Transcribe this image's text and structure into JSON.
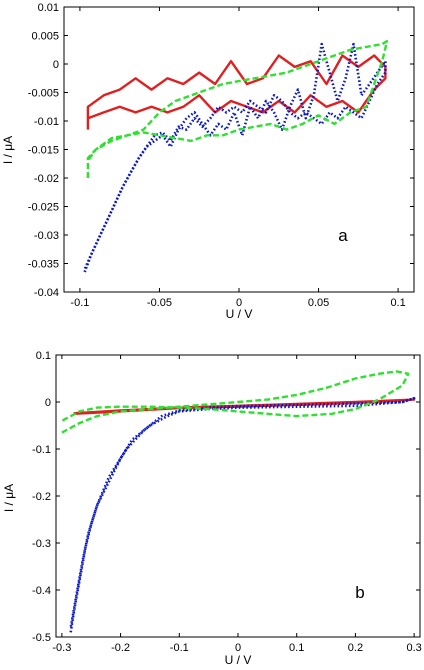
{
  "chart_data": [
    {
      "type": "line",
      "panel_label": "a",
      "xlabel": "U / V",
      "ylabel": "I / μA",
      "xlim": [
        -0.11,
        0.11
      ],
      "ylim": [
        -0.04,
        0.01
      ],
      "xticks": [
        -0.1,
        -0.05,
        0,
        0.05,
        0.1
      ],
      "xtick_labels": [
        "-0.1",
        "-0.05",
        "0",
        "0.05",
        "0.1"
      ],
      "yticks": [
        0.01,
        0.005,
        0,
        -0.005,
        -0.01,
        -0.015,
        -0.02,
        -0.025,
        -0.03,
        -0.035,
        -0.04
      ],
      "ytick_labels": [
        "0.01",
        "0.005",
        "0",
        "-0.005",
        "-0.01",
        "-0.015",
        "-0.02",
        "-0.025",
        "-0.03",
        "-0.035",
        "-0.04"
      ],
      "grid": false,
      "series": [
        {
          "color": "#e02020",
          "style": "solid",
          "x": [
            -0.095,
            -0.095,
            -0.085,
            -0.075,
            -0.065,
            -0.055,
            -0.045,
            -0.035,
            -0.025,
            -0.015,
            -0.005,
            0.005,
            0.015,
            0.025,
            0.035,
            0.045,
            0.055,
            0.065,
            0.075,
            0.085,
            0.092,
            0.092,
            0.085,
            0.075,
            0.065,
            0.055,
            0.045,
            0.035,
            0.025,
            0.015,
            0.005,
            -0.005,
            -0.015,
            -0.025,
            -0.035,
            -0.045,
            -0.055,
            -0.065,
            -0.075,
            -0.085,
            -0.095
          ],
          "y": [
            -0.0115,
            -0.0075,
            -0.0055,
            -0.0045,
            -0.0025,
            -0.0045,
            -0.0025,
            -0.0035,
            -0.0015,
            -0.0035,
            0.0005,
            -0.0035,
            -0.0025,
            0.0015,
            -0.0005,
            0.0005,
            -0.0035,
            0.0015,
            -0.0005,
            0.0015,
            -0.0005,
            -0.0025,
            -0.0045,
            -0.0085,
            -0.0065,
            -0.0075,
            -0.0055,
            -0.0085,
            -0.0065,
            -0.0085,
            -0.0075,
            -0.0065,
            -0.0085,
            -0.0055,
            -0.0075,
            -0.0085,
            -0.0075,
            -0.0085,
            -0.0075,
            -0.0085,
            -0.0095
          ]
        },
        {
          "color": "#0a18c8",
          "style": "dotted",
          "x": [
            -0.097,
            -0.093,
            -0.088,
            -0.083,
            -0.078,
            -0.073,
            -0.068,
            -0.063,
            -0.058,
            -0.053,
            -0.048,
            -0.043,
            -0.038,
            -0.033,
            -0.028,
            -0.023,
            -0.018,
            -0.013,
            -0.008,
            -0.003,
            0.002,
            0.007,
            0.012,
            0.017,
            0.022,
            0.027,
            0.032,
            0.037,
            0.042,
            0.047,
            0.052,
            0.057,
            0.062,
            0.067,
            0.072,
            0.077,
            0.082,
            0.087,
            0.092,
            0.092,
            0.087,
            0.082,
            0.077,
            0.072,
            0.067,
            0.062,
            0.057,
            0.052,
            0.047,
            0.042,
            0.037,
            0.032,
            0.027,
            0.022,
            0.017,
            0.012,
            0.007,
            0.002,
            -0.003,
            -0.008,
            -0.013,
            -0.018,
            -0.023,
            -0.028,
            -0.033,
            -0.038,
            -0.043,
            -0.048,
            -0.053,
            -0.058,
            -0.063,
            -0.068,
            -0.073,
            -0.078,
            -0.083,
            -0.088,
            -0.093,
            -0.097
          ],
          "y": [
            -0.0365,
            -0.0335,
            -0.0305,
            -0.0275,
            -0.0245,
            -0.0215,
            -0.019,
            -0.0165,
            -0.0145,
            -0.0125,
            -0.012,
            -0.0135,
            -0.011,
            -0.0115,
            -0.0095,
            -0.011,
            -0.0095,
            -0.0075,
            -0.0085,
            -0.0075,
            -0.0085,
            -0.0065,
            -0.0075,
            -0.0085,
            -0.0055,
            -0.0065,
            -0.0085,
            -0.0095,
            -0.0085,
            -0.0095,
            -0.0105,
            -0.0085,
            -0.0095,
            -0.0075,
            -0.0085,
            -0.0095,
            -0.0065,
            -0.0035,
            -0.0015,
            0.0005,
            -0.0015,
            -0.0035,
            -0.0055,
            0.0035,
            -0.0025,
            -0.0065,
            -0.0015,
            0.0035,
            -0.0055,
            -0.0095,
            -0.0045,
            -0.0075,
            -0.0115,
            -0.0085,
            -0.0065,
            -0.0095,
            -0.0075,
            -0.0125,
            -0.0085,
            -0.0115,
            -0.0105,
            -0.0125,
            -0.0105,
            -0.0085,
            -0.0095,
            -0.0115,
            -0.0145,
            -0.0125,
            -0.0135,
            -0.0145,
            -0.0165,
            -0.019,
            -0.0215,
            -0.0245,
            -0.0275,
            -0.0305,
            -0.0335,
            -0.036
          ]
        },
        {
          "color": "#30e030",
          "style": "dashed",
          "x": [
            -0.095,
            -0.095,
            -0.09,
            -0.08,
            -0.07,
            -0.06,
            -0.05,
            -0.04,
            -0.03,
            -0.02,
            -0.01,
            0.0,
            0.01,
            0.02,
            0.03,
            0.04,
            0.05,
            0.06,
            0.07,
            0.08,
            0.09,
            0.093,
            0.09,
            0.08,
            0.07,
            0.06,
            0.05,
            0.04,
            0.03,
            0.02,
            0.01,
            0.0,
            -0.01,
            -0.02,
            -0.03,
            -0.04,
            -0.05,
            -0.06,
            -0.07,
            -0.08,
            -0.09,
            -0.095
          ],
          "y": [
            -0.02,
            -0.0165,
            -0.015,
            -0.0135,
            -0.0125,
            -0.0115,
            -0.0085,
            -0.0065,
            -0.0055,
            -0.0045,
            -0.0035,
            -0.003,
            -0.0025,
            -0.002,
            -0.0015,
            -0.0005,
            0.0005,
            0.0015,
            0.0025,
            0.003,
            0.0035,
            0.004,
            0.0005,
            -0.0075,
            -0.0085,
            -0.0105,
            -0.009,
            -0.0105,
            -0.0115,
            -0.0105,
            -0.011,
            -0.0115,
            -0.0125,
            -0.0125,
            -0.0135,
            -0.013,
            -0.0125,
            -0.012,
            -0.0125,
            -0.013,
            -0.015,
            -0.017
          ]
        }
      ]
    },
    {
      "type": "line",
      "panel_label": "b",
      "xlabel": "U / V",
      "ylabel": "I / μA",
      "xlim": [
        -0.31,
        0.31
      ],
      "ylim": [
        -0.5,
        0.1
      ],
      "xticks": [
        -0.3,
        -0.2,
        -0.1,
        0,
        0.1,
        0.2,
        0.3
      ],
      "xtick_labels": [
        "-0.3",
        "-0.2",
        "-0.1",
        "0",
        "0.1",
        "0.2",
        "0.3"
      ],
      "yticks": [
        0.1,
        0,
        -0.1,
        -0.2,
        -0.3,
        -0.4,
        -0.5
      ],
      "ytick_labels": [
        "0.1",
        "0",
        "-0.1",
        "-0.2",
        "-0.3",
        "-0.4",
        "-0.5"
      ],
      "grid": false,
      "series": [
        {
          "color": "#e02020",
          "style": "solid",
          "x": [
            -0.28,
            -0.2,
            -0.1,
            0.0,
            0.1,
            0.2,
            0.3,
            0.2,
            0.1,
            0.0,
            -0.1,
            -0.2,
            -0.28
          ],
          "y": [
            -0.025,
            -0.02,
            -0.013,
            -0.01,
            -0.006,
            -0.002,
            0.005,
            0.0,
            -0.004,
            -0.008,
            -0.012,
            -0.018,
            -0.024
          ]
        },
        {
          "color": "#0a18c8",
          "style": "dotted",
          "x": [
            -0.285,
            -0.28,
            -0.27,
            -0.26,
            -0.25,
            -0.24,
            -0.22,
            -0.2,
            -0.18,
            -0.15,
            -0.12,
            -0.1,
            -0.05,
            0.0,
            0.1,
            0.2,
            0.28,
            0.3,
            0.28,
            0.2,
            0.1,
            0.0,
            -0.05,
            -0.1,
            -0.13,
            -0.16,
            -0.19,
            -0.22,
            -0.24,
            -0.255,
            -0.265,
            -0.275,
            -0.285
          ],
          "y": [
            -0.49,
            -0.45,
            -0.38,
            -0.31,
            -0.26,
            -0.22,
            -0.17,
            -0.12,
            -0.08,
            -0.05,
            -0.03,
            -0.02,
            -0.015,
            -0.012,
            -0.01,
            -0.008,
            0.0,
            0.008,
            0.0,
            -0.003,
            -0.006,
            -0.009,
            -0.012,
            -0.018,
            -0.03,
            -0.06,
            -0.1,
            -0.16,
            -0.22,
            -0.28,
            -0.34,
            -0.41,
            -0.48
          ]
        },
        {
          "color": "#30e030",
          "style": "dashed",
          "x": [
            -0.3,
            -0.27,
            -0.24,
            -0.2,
            -0.15,
            -0.1,
            -0.05,
            0.0,
            0.05,
            0.1,
            0.15,
            0.2,
            0.24,
            0.27,
            0.29,
            0.28,
            0.24,
            0.2,
            0.16,
            0.1,
            0.05,
            0.0,
            -0.05,
            -0.1,
            -0.15,
            -0.2,
            -0.24,
            -0.27,
            -0.3
          ],
          "y": [
            -0.065,
            -0.045,
            -0.03,
            -0.02,
            -0.015,
            -0.01,
            -0.005,
            0.0,
            0.005,
            0.015,
            0.03,
            0.05,
            0.06,
            0.065,
            0.06,
            0.035,
            0.005,
            -0.015,
            -0.025,
            -0.03,
            -0.025,
            -0.02,
            -0.015,
            -0.012,
            -0.01,
            -0.01,
            -0.012,
            -0.02,
            -0.04
          ]
        }
      ]
    }
  ]
}
